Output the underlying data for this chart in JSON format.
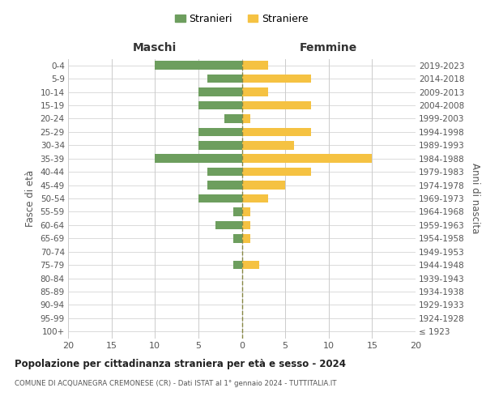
{
  "age_groups": [
    "100+",
    "95-99",
    "90-94",
    "85-89",
    "80-84",
    "75-79",
    "70-74",
    "65-69",
    "60-64",
    "55-59",
    "50-54",
    "45-49",
    "40-44",
    "35-39",
    "30-34",
    "25-29",
    "20-24",
    "15-19",
    "10-14",
    "5-9",
    "0-4"
  ],
  "birth_years": [
    "≤ 1923",
    "1924-1928",
    "1929-1933",
    "1934-1938",
    "1939-1943",
    "1944-1948",
    "1949-1953",
    "1954-1958",
    "1959-1963",
    "1964-1968",
    "1969-1973",
    "1974-1978",
    "1979-1983",
    "1984-1988",
    "1989-1993",
    "1994-1998",
    "1999-2003",
    "2004-2008",
    "2009-2013",
    "2014-2018",
    "2019-2023"
  ],
  "maschi": [
    0,
    0,
    0,
    0,
    0,
    1,
    0,
    1,
    3,
    1,
    5,
    4,
    4,
    10,
    5,
    5,
    2,
    5,
    5,
    4,
    10
  ],
  "femmine": [
    0,
    0,
    0,
    0,
    0,
    2,
    0,
    1,
    1,
    1,
    3,
    5,
    8,
    15,
    6,
    8,
    1,
    8,
    3,
    8,
    3
  ],
  "color_maschi": "#6d9e5e",
  "color_femmine": "#f5c242",
  "title": "Popolazione per cittadinanza straniera per età e sesso - 2024",
  "subtitle": "COMUNE DI ACQUANEGRA CREMONESE (CR) - Dati ISTAT al 1° gennaio 2024 - TUTTITALIA.IT",
  "ylabel_left": "Fasce di età",
  "ylabel_right": "Anni di nascita",
  "xlabel_maschi": "Maschi",
  "xlabel_femmine": "Femmine",
  "legend_maschi": "Stranieri",
  "legend_femmine": "Straniere",
  "xlim": 20,
  "background_color": "#ffffff",
  "grid_color": "#cccccc",
  "bar_height": 0.65
}
